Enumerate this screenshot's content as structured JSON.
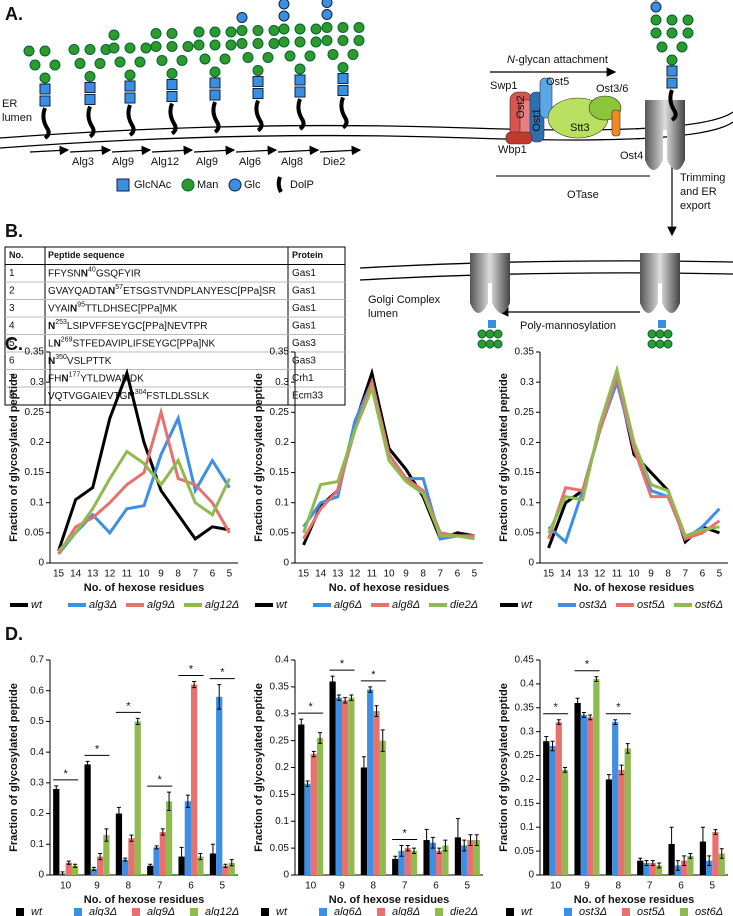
{
  "panel_labels": [
    "A.",
    "B.",
    "C.",
    "D."
  ],
  "panel_a": {
    "er_lumen": [
      "ER",
      "lumen"
    ],
    "enzymes": [
      "Alg3",
      "Alg9",
      "Alg12",
      "Alg9",
      "Alg6",
      "Alg8",
      "Die2"
    ],
    "legend": [
      "GlcNAc",
      "Man",
      "Glc",
      "DolP"
    ],
    "attachment": {
      "italic": "N",
      "text": "-glycan attachment"
    },
    "subunits": [
      "Swp1",
      "Ost5",
      "Ost3/6",
      "Ost2",
      "Ost1",
      "Stt3",
      "Wbp1",
      "Ost4"
    ],
    "otase": "OTase",
    "trimming": [
      "Trimming",
      "and ER",
      "export"
    ],
    "golgi": [
      "Golgi Complex",
      "lumen"
    ],
    "poly": "Poly-mannosylation"
  },
  "panel_b": {
    "header": [
      "No.",
      "Peptide sequence",
      "Protein"
    ],
    "rows": [
      {
        "no": 1,
        "sequence": {
          "pre": "FFYSN",
          "n": "N",
          "sup": "40",
          "post": "GSQFYIR"
        },
        "protein": "Gas1"
      },
      {
        "no": 2,
        "sequence": {
          "pre": "GVAYQADTA",
          "n": "N",
          "sup": "57",
          "post": "ETSGSTVNDPLANYESC[PPa]SR"
        },
        "protein": "Gas1"
      },
      {
        "no": 3,
        "sequence": {
          "pre": "VYAI",
          "n": "N",
          "sup": "95",
          "post": "TTLDHSEC[PPa]MK"
        },
        "protein": "Gas1"
      },
      {
        "no": 4,
        "sequence": {
          "n": "N",
          "sup": "253",
          "post": "LSIPVFFSEYGC[PPa]NEVTPR"
        },
        "protein": "Gas1"
      },
      {
        "no": 5,
        "sequence": {
          "pre": "L",
          "n": "N",
          "sup": "269",
          "post": "STFEDAVIPLIFSEYGC[PPa]NK"
        },
        "protein": "Gas3"
      },
      {
        "no": 6,
        "sequence": {
          "n": "N",
          "sup": "350",
          "post": "VSLPTTK"
        },
        "protein": "Gas3"
      },
      {
        "no": 7,
        "sequence": {
          "pre": "FH",
          "n": "N",
          "sup": "177",
          "post": "YTLDWAMDK"
        },
        "protein": "Crh1"
      },
      {
        "no": 8,
        "sequence": {
          "pre": "VQTVGGAIEVTG",
          "n": "N",
          "sup": "304",
          "post": "FSTLDLSSLK"
        },
        "protein": "Ecm33"
      }
    ]
  },
  "chart_data": [
    {
      "type": "line",
      "y_label": "Fraction of glycosylated peptide",
      "x_label": "No. of hexose residues",
      "categories": [
        "15",
        "14",
        "13",
        "12",
        "11",
        "10",
        "9",
        "8",
        "7",
        "6",
        "5"
      ],
      "ylim": [
        0,
        0.35
      ],
      "yticks": [
        0,
        0.05,
        0.1,
        0.15,
        0.2,
        0.25,
        0.3,
        0.35
      ],
      "series": [
        {
          "name": "wt",
          "color": "#000000",
          "values": [
            0.02,
            0.105,
            0.125,
            0.24,
            0.315,
            0.2,
            0.12,
            0.08,
            0.04,
            0.06,
            0.055
          ]
        },
        {
          "name": "alg3Δ",
          "color": "#3d8fe6",
          "values": [
            0.015,
            0.05,
            0.08,
            0.05,
            0.09,
            0.095,
            0.18,
            0.24,
            0.12,
            0.17,
            0.125
          ]
        },
        {
          "name": "alg9Δ",
          "color": "#e8716f",
          "values": [
            0.015,
            0.06,
            0.075,
            0.1,
            0.13,
            0.15,
            0.25,
            0.14,
            0.13,
            0.1,
            0.05
          ]
        },
        {
          "name": "alg12Δ",
          "color": "#8fba4f",
          "values": [
            0.02,
            0.05,
            0.09,
            0.14,
            0.185,
            0.165,
            0.13,
            0.17,
            0.1,
            0.08,
            0.14
          ]
        }
      ]
    },
    {
      "type": "line",
      "y_label": "Fraction of glycosylated peptide",
      "x_label": "No. of hexose residues",
      "categories": [
        "15",
        "14",
        "13",
        "12",
        "11",
        "10",
        "9",
        "8",
        "7",
        "6",
        "5"
      ],
      "ylim": [
        0,
        0.35
      ],
      "yticks": [
        0,
        0.05,
        0.1,
        0.15,
        0.2,
        0.25,
        0.3,
        0.35
      ],
      "series": [
        {
          "name": "wt",
          "color": "#000000",
          "values": [
            0.03,
            0.095,
            0.12,
            0.23,
            0.315,
            0.19,
            0.155,
            0.11,
            0.04,
            0.05,
            0.045
          ]
        },
        {
          "name": "alg6Δ",
          "color": "#3d8fe6",
          "values": [
            0.06,
            0.1,
            0.11,
            0.235,
            0.3,
            0.18,
            0.14,
            0.14,
            0.04,
            0.045,
            0.045
          ]
        },
        {
          "name": "alg8Δ",
          "color": "#e8716f",
          "values": [
            0.04,
            0.09,
            0.12,
            0.22,
            0.3,
            0.18,
            0.14,
            0.12,
            0.05,
            0.045,
            0.045
          ]
        },
        {
          "name": "die2Δ",
          "color": "#8fba4f",
          "values": [
            0.05,
            0.13,
            0.135,
            0.22,
            0.29,
            0.17,
            0.135,
            0.115,
            0.045,
            0.045,
            0.04
          ]
        }
      ]
    },
    {
      "type": "line",
      "y_label": "Fraction of glycosylated peptide",
      "x_label": "No. of hexose residues",
      "categories": [
        "15",
        "14",
        "13",
        "12",
        "11",
        "10",
        "9",
        "8",
        "7",
        "6",
        "5"
      ],
      "ylim": [
        0,
        0.35
      ],
      "yticks": [
        0,
        0.05,
        0.1,
        0.15,
        0.2,
        0.25,
        0.3,
        0.35
      ],
      "series": [
        {
          "name": "wt",
          "color": "#000000",
          "values": [
            0.025,
            0.1,
            0.12,
            0.22,
            0.31,
            0.18,
            0.15,
            0.12,
            0.035,
            0.06,
            0.05
          ]
        },
        {
          "name": "ost3Δ",
          "color": "#3d8fe6",
          "values": [
            0.06,
            0.035,
            0.12,
            0.22,
            0.3,
            0.19,
            0.12,
            0.11,
            0.04,
            0.06,
            0.09
          ]
        },
        {
          "name": "ost5Δ",
          "color": "#e8716f",
          "values": [
            0.04,
            0.125,
            0.12,
            0.22,
            0.31,
            0.19,
            0.11,
            0.11,
            0.04,
            0.05,
            0.07
          ]
        },
        {
          "name": "ost6Δ",
          "color": "#8fba4f",
          "values": [
            0.05,
            0.11,
            0.105,
            0.23,
            0.32,
            0.2,
            0.13,
            0.12,
            0.045,
            0.055,
            0.06
          ]
        }
      ]
    },
    {
      "type": "bar",
      "y_label": "Fraction of glycosylated peptide",
      "x_label": "No. of hexose residues",
      "categories": [
        "10",
        "9",
        "8",
        "7",
        "6",
        "5"
      ],
      "ylim": [
        0,
        0.7
      ],
      "yticks": [
        0,
        0.1,
        0.2,
        0.3,
        0.4,
        0.5,
        0.6,
        0.7
      ],
      "significance": [
        "*",
        "*",
        "*",
        "*",
        "*",
        "*"
      ],
      "series": [
        {
          "name": "wt",
          "color": "#000000",
          "values": [
            0.28,
            0.36,
            0.2,
            0.03,
            0.06,
            0.07
          ],
          "errors": [
            0.01,
            0.01,
            0.02,
            0.005,
            0.03,
            0.03
          ]
        },
        {
          "name": "alg3Δ",
          "color": "#3d8fe6",
          "values": [
            0.005,
            0.02,
            0.05,
            0.09,
            0.24,
            0.58
          ],
          "errors": [
            0.005,
            0.005,
            0.005,
            0.005,
            0.02,
            0.04
          ]
        },
        {
          "name": "alg9Δ",
          "color": "#e8716f",
          "values": [
            0.04,
            0.06,
            0.12,
            0.14,
            0.62,
            0.03
          ],
          "errors": [
            0.005,
            0.01,
            0.01,
            0.01,
            0.01,
            0.005
          ]
        },
        {
          "name": "alg12Δ",
          "color": "#8fba4f",
          "values": [
            0.03,
            0.13,
            0.5,
            0.24,
            0.06,
            0.04
          ],
          "errors": [
            0.005,
            0.02,
            0.01,
            0.03,
            0.01,
            0.01
          ]
        }
      ]
    },
    {
      "type": "bar",
      "y_label": "Fraction of glycosylated peptide",
      "x_label": "No. of hexose residues",
      "categories": [
        "10",
        "9",
        "8",
        "7",
        "6",
        "5"
      ],
      "ylim": [
        0,
        0.4
      ],
      "yticks": [
        0,
        0.05,
        0.1,
        0.15,
        0.2,
        0.25,
        0.3,
        0.35,
        0.4
      ],
      "significance": [
        "*",
        "*",
        "*",
        "*",
        null,
        null
      ],
      "series": [
        {
          "name": "wt",
          "color": "#000000",
          "values": [
            0.28,
            0.36,
            0.2,
            0.03,
            0.065,
            0.07
          ],
          "errors": [
            0.01,
            0.01,
            0.02,
            0.005,
            0.02,
            0.035
          ]
        },
        {
          "name": "alg6Δ",
          "color": "#3d8fe6",
          "values": [
            0.17,
            0.33,
            0.345,
            0.045,
            0.06,
            0.055
          ],
          "errors": [
            0.005,
            0.005,
            0.005,
            0.01,
            0.01,
            0.01
          ]
        },
        {
          "name": "alg8Δ",
          "color": "#e8716f",
          "values": [
            0.225,
            0.325,
            0.305,
            0.05,
            0.045,
            0.065
          ],
          "errors": [
            0.005,
            0.005,
            0.01,
            0.005,
            0.005,
            0.01
          ]
        },
        {
          "name": "die2Δ",
          "color": "#8fba4f",
          "values": [
            0.255,
            0.33,
            0.25,
            0.045,
            0.055,
            0.065
          ],
          "errors": [
            0.01,
            0.005,
            0.02,
            0.005,
            0.01,
            0.01
          ]
        }
      ]
    },
    {
      "type": "bar",
      "y_label": "Fraction of glycosylated peptide",
      "x_label": "No. of hexose residues",
      "categories": [
        "10",
        "9",
        "8",
        "7",
        "6",
        "5"
      ],
      "ylim": [
        0,
        0.45
      ],
      "yticks": [
        0,
        0.05,
        0.1,
        0.15,
        0.2,
        0.25,
        0.3,
        0.35,
        0.4,
        0.45
      ],
      "significance": [
        "*",
        "*",
        "*",
        null,
        null,
        null
      ],
      "series": [
        {
          "name": "wt",
          "color": "#000000",
          "values": [
            0.28,
            0.36,
            0.2,
            0.03,
            0.065,
            0.07
          ],
          "errors": [
            0.01,
            0.01,
            0.01,
            0.005,
            0.035,
            0.03
          ]
        },
        {
          "name": "ost3Δ",
          "color": "#3d8fe6",
          "values": [
            0.27,
            0.335,
            0.32,
            0.025,
            0.02,
            0.03
          ],
          "errors": [
            0.01,
            0.005,
            0.005,
            0.005,
            0.01,
            0.01
          ]
        },
        {
          "name": "ost5Δ",
          "color": "#e8716f",
          "values": [
            0.32,
            0.33,
            0.22,
            0.025,
            0.03,
            0.09
          ],
          "errors": [
            0.005,
            0.005,
            0.01,
            0.005,
            0.01,
            0.005
          ]
        },
        {
          "name": "ost6Δ",
          "color": "#8fba4f",
          "values": [
            0.22,
            0.41,
            0.265,
            0.02,
            0.04,
            0.045
          ],
          "errors": [
            0.005,
            0.005,
            0.01,
            0.005,
            0.005,
            0.01
          ]
        }
      ]
    }
  ]
}
